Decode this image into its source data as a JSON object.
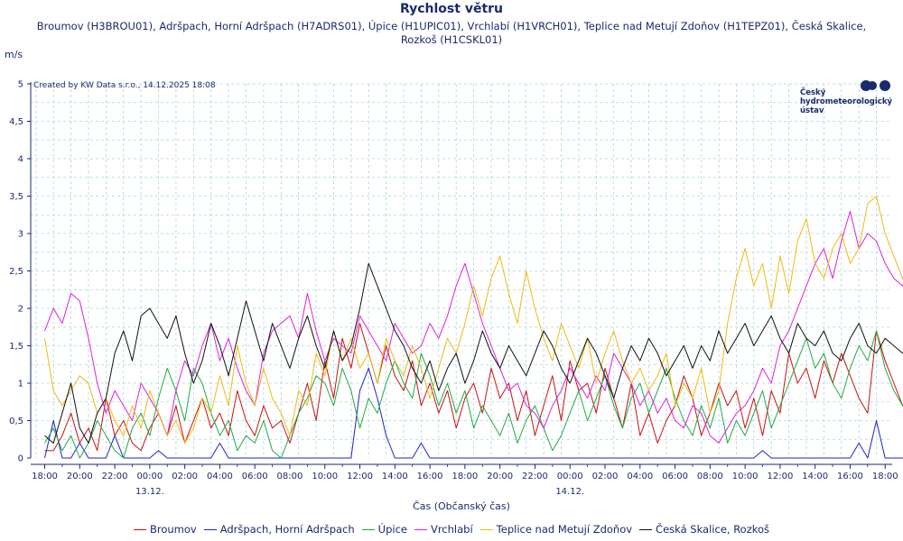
{
  "chart_data": {
    "type": "line",
    "title": "Rychlost větru",
    "subtitle": "Broumov (H3BROU01), Adršpach, Horní Adršpach (H7ADRS01), Úpice (H1UPIC01), Vrchlabí (H1VRCH01), Teplice nad Metují Zdoňov (H1TEPZ01), Česká Skalice, Rozkoš (H1CSKL01)",
    "ylabel": "m/s",
    "xlabel": "Čas (Občanský čas)",
    "ylim": [
      0,
      5
    ],
    "yticks": [
      "0",
      "0,5",
      "1",
      "1,5",
      "2",
      "2,5",
      "3",
      "3,5",
      "4",
      "4,5",
      "5"
    ],
    "xlim_hours": [
      -0.8,
      48.4
    ],
    "xticks": [
      {
        "h": 0,
        "label": "18:00",
        "date": ""
      },
      {
        "h": 2,
        "label": "20:00",
        "date": ""
      },
      {
        "h": 4,
        "label": "22:00",
        "date": ""
      },
      {
        "h": 6,
        "label": "00:00",
        "date": "13.12."
      },
      {
        "h": 8,
        "label": "02:00",
        "date": ""
      },
      {
        "h": 10,
        "label": "04:00",
        "date": ""
      },
      {
        "h": 12,
        "label": "06:00",
        "date": ""
      },
      {
        "h": 14,
        "label": "08:00",
        "date": ""
      },
      {
        "h": 16,
        "label": "10:00",
        "date": ""
      },
      {
        "h": 18,
        "label": "12:00",
        "date": ""
      },
      {
        "h": 20,
        "label": "14:00",
        "date": ""
      },
      {
        "h": 22,
        "label": "16:00",
        "date": ""
      },
      {
        "h": 24,
        "label": "18:00",
        "date": ""
      },
      {
        "h": 26,
        "label": "20:00",
        "date": ""
      },
      {
        "h": 28,
        "label": "22:00",
        "date": ""
      },
      {
        "h": 30,
        "label": "00:00",
        "date": "14.12."
      },
      {
        "h": 32,
        "label": "02:00",
        "date": ""
      },
      {
        "h": 34,
        "label": "04:00",
        "date": ""
      },
      {
        "h": 36,
        "label": "06:00",
        "date": ""
      },
      {
        "h": 38,
        "label": "08:00",
        "date": ""
      },
      {
        "h": 40,
        "label": "10:00",
        "date": ""
      },
      {
        "h": 42,
        "label": "12:00",
        "date": ""
      },
      {
        "h": 44,
        "label": "14:00",
        "date": ""
      },
      {
        "h": 46,
        "label": "16:00",
        "date": ""
      },
      {
        "h": 48,
        "label": "18:00",
        "date": ""
      }
    ],
    "grid": true,
    "legend_position": "bottom",
    "sample_interval_hours": 0.5,
    "series": [
      {
        "name": "Broumov",
        "color": "#cc1111",
        "values": [
          0.1,
          0.1,
          0.3,
          0.6,
          0.2,
          0.4,
          0.1,
          0.8,
          0.3,
          0.5,
          0.2,
          0.1,
          0.4,
          0.6,
          0.3,
          0.7,
          0.2,
          0.5,
          0.8,
          0.4,
          0.6,
          0.3,
          0.9,
          0.5,
          0.3,
          0.7,
          0.4,
          0.5,
          0.2,
          0.6,
          1.0,
          0.5,
          1.3,
          0.8,
          1.6,
          1.2,
          1.8,
          1.4,
          1.0,
          1.5,
          1.1,
          0.9,
          1.3,
          0.7,
          1.0,
          0.6,
          0.9,
          0.4,
          0.8,
          1.0,
          0.6,
          1.2,
          0.8,
          1.0,
          0.5,
          0.9,
          0.3,
          0.7,
          1.1,
          0.5,
          1.3,
          0.9,
          1.0,
          0.6,
          1.2,
          0.8,
          0.4,
          1.0,
          0.3,
          0.6,
          0.2,
          0.5,
          0.7,
          1.1,
          0.8,
          0.3,
          0.6,
          1.0,
          0.7,
          0.9,
          0.4,
          0.8,
          0.3,
          0.9,
          0.6,
          1.4,
          1.0,
          1.2,
          0.8,
          1.3,
          1.0,
          1.4,
          1.1,
          0.8,
          0.6,
          1.7,
          1.3,
          1.0,
          0.7,
          0.5
        ]
      },
      {
        "name": "Adršpach, Horní Adršpach",
        "color": "#2222cc",
        "values": [
          0.0,
          0.5,
          0.0,
          0.0,
          0.2,
          0.0,
          0.0,
          0.0,
          0.3,
          0.0,
          0.0,
          0.0,
          0.0,
          0.1,
          0.0,
          0.0,
          0.0,
          0.0,
          0.0,
          0.0,
          0.2,
          0.0,
          0.0,
          0.0,
          0.0,
          0.0,
          0.0,
          0.0,
          0.0,
          0.0,
          0.0,
          0.0,
          0.0,
          0.0,
          0.0,
          0.0,
          0.9,
          1.2,
          0.8,
          0.3,
          0.0,
          0.0,
          0.0,
          0.2,
          0.0,
          0.0,
          0.0,
          0.0,
          0.0,
          0.0,
          0.0,
          0.0,
          0.0,
          0.0,
          0.0,
          0.0,
          0.0,
          0.0,
          0.0,
          0.0,
          0.0,
          0.0,
          0.0,
          0.0,
          0.0,
          0.0,
          0.0,
          0.0,
          0.0,
          0.0,
          0.0,
          0.0,
          0.0,
          0.0,
          0.0,
          0.0,
          0.0,
          0.0,
          0.0,
          0.0,
          0.0,
          0.0,
          0.1,
          0.0,
          0.0,
          0.0,
          0.0,
          0.0,
          0.0,
          0.0,
          0.0,
          0.0,
          0.0,
          0.2,
          0.0,
          0.5,
          0.0,
          0.0,
          0.0,
          0.0,
          0.3
        ]
      },
      {
        "name": "Úpice",
        "color": "#22aa44",
        "values": [
          0.2,
          0.4,
          0.1,
          0.3,
          0.0,
          0.2,
          0.5,
          0.3,
          0.1,
          0.0,
          0.4,
          0.6,
          0.3,
          0.8,
          1.2,
          0.9,
          0.5,
          1.2,
          1.0,
          0.6,
          0.3,
          0.5,
          0.1,
          0.3,
          0.2,
          0.5,
          0.1,
          0.0,
          0.3,
          0.6,
          0.8,
          1.1,
          1.0,
          0.7,
          1.2,
          0.9,
          0.4,
          0.8,
          0.6,
          1.0,
          1.3,
          1.0,
          0.8,
          1.4,
          1.1,
          0.7,
          1.0,
          0.6,
          0.9,
          0.4,
          0.7,
          0.5,
          0.3,
          0.6,
          0.2,
          0.5,
          0.7,
          0.4,
          0.1,
          0.3,
          0.6,
          0.9,
          0.5,
          0.8,
          1.1,
          0.7,
          0.4,
          0.8,
          1.0,
          0.6,
          0.9,
          1.2,
          0.8,
          0.5,
          0.3,
          0.7,
          0.4,
          0.8,
          0.2,
          0.5,
          0.3,
          0.6,
          0.9,
          0.4,
          0.7,
          1.0,
          1.3,
          1.6,
          1.2,
          1.4,
          1.0,
          0.8,
          1.2,
          1.5,
          1.3,
          1.7,
          1.2,
          0.9,
          0.7,
          1.0
        ]
      },
      {
        "name": "Vrchlabí",
        "color": "#dd22dd",
        "values": [
          1.7,
          2.0,
          1.8,
          2.2,
          2.1,
          1.6,
          1.0,
          0.6,
          0.9,
          0.7,
          0.5,
          1.0,
          0.8,
          0.6,
          0.3,
          0.9,
          1.3,
          1.1,
          1.5,
          1.8,
          1.3,
          1.6,
          1.2,
          0.9,
          0.7,
          1.4,
          1.7,
          1.8,
          1.9,
          1.6,
          2.2,
          1.7,
          1.3,
          1.6,
          1.5,
          1.4,
          1.9,
          1.7,
          1.5,
          1.3,
          1.8,
          1.6,
          1.4,
          1.5,
          1.8,
          1.6,
          1.9,
          2.3,
          2.6,
          2.2,
          1.8,
          1.5,
          1.2,
          0.9,
          1.0,
          0.7,
          0.6,
          0.4,
          0.7,
          0.9,
          1.2,
          1.0,
          0.8,
          1.1,
          0.9,
          1.4,
          1.2,
          1.0,
          0.7,
          0.9,
          0.6,
          0.8,
          0.5,
          0.4,
          0.7,
          0.6,
          0.3,
          0.2,
          0.4,
          0.6,
          0.7,
          0.9,
          1.2,
          1.0,
          1.5,
          1.7,
          2.0,
          2.3,
          2.6,
          2.8,
          2.4,
          2.9,
          3.3,
          2.8,
          3.0,
          2.9,
          2.6,
          2.4,
          2.3,
          2.6
        ]
      },
      {
        "name": "Teplice nad Metují Zdoňov",
        "color": "#eebb11",
        "values": [
          1.6,
          0.9,
          0.7,
          0.9,
          1.1,
          1.0,
          0.6,
          0.8,
          0.5,
          0.3,
          0.7,
          0.4,
          0.9,
          0.6,
          0.3,
          0.5,
          0.2,
          0.4,
          0.8,
          0.6,
          1.1,
          0.7,
          1.5,
          1.0,
          0.7,
          1.2,
          0.8,
          0.6,
          0.3,
          0.9,
          0.7,
          1.4,
          1.1,
          1.7,
          1.3,
          1.6,
          1.2,
          1.4,
          1.0,
          1.6,
          1.3,
          1.1,
          1.5,
          1.2,
          0.8,
          1.2,
          1.6,
          1.4,
          1.8,
          2.3,
          1.9,
          2.4,
          2.7,
          2.2,
          1.8,
          2.5,
          2.0,
          1.6,
          1.3,
          1.8,
          1.5,
          1.2,
          1.6,
          1.0,
          1.4,
          1.7,
          1.3,
          1.0,
          1.2,
          0.9,
          1.1,
          1.4,
          0.7,
          1.0,
          0.8,
          1.2,
          0.6,
          0.9,
          1.8,
          2.4,
          2.8,
          2.3,
          2.6,
          2.0,
          2.7,
          2.2,
          2.9,
          3.2,
          2.6,
          2.4,
          2.8,
          3.0,
          2.6,
          2.8,
          3.4,
          3.5,
          3.0,
          2.7,
          2.4,
          2.2
        ]
      },
      {
        "name": "Česká Skalice, Rozkoš",
        "color": "#111111",
        "values": [
          0.3,
          0.2,
          0.6,
          1.0,
          0.4,
          0.2,
          0.6,
          0.8,
          1.4,
          1.7,
          1.3,
          1.9,
          2.0,
          1.8,
          1.6,
          1.9,
          1.4,
          1.0,
          1.3,
          1.8,
          1.5,
          1.1,
          1.6,
          2.1,
          1.7,
          1.3,
          1.8,
          1.5,
          1.2,
          1.6,
          1.9,
          1.5,
          1.2,
          1.7,
          1.3,
          1.5,
          2.0,
          2.6,
          2.3,
          2.0,
          1.7,
          1.5,
          1.2,
          1.0,
          1.3,
          0.9,
          1.2,
          1.4,
          1.0,
          1.3,
          1.7,
          1.4,
          1.2,
          1.5,
          1.3,
          1.1,
          1.4,
          1.7,
          1.5,
          1.2,
          1.0,
          1.3,
          1.6,
          1.4,
          1.1,
          0.8,
          1.2,
          1.5,
          1.3,
          1.6,
          1.4,
          1.1,
          1.3,
          1.5,
          1.2,
          1.5,
          1.3,
          1.7,
          1.4,
          1.6,
          1.8,
          1.5,
          1.7,
          1.9,
          1.6,
          1.4,
          1.8,
          1.6,
          1.5,
          1.7,
          1.4,
          1.3,
          1.6,
          1.8,
          1.5,
          1.4,
          1.6,
          1.5,
          1.4,
          1.4
        ]
      }
    ]
  },
  "credit": "Created by KW Data s.r.o., 14.12.2025 18:08",
  "logo": {
    "line1": "Český",
    "line2": "hydrometeorologický",
    "line3": "ústav"
  }
}
